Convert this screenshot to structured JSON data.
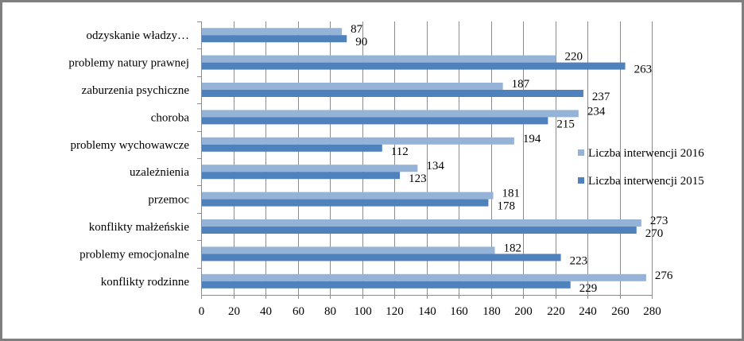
{
  "chart_data": {
    "type": "bar",
    "orientation": "horizontal",
    "categories": [
      "odzyskanie władzy…",
      "problemy natury prawnej",
      "zaburzenia psychiczne",
      "choroba",
      "problemy wychowawcze",
      "uzależnienia",
      "przemoc",
      "konflikty małżeńskie",
      "problemy emocjonalne",
      "konflikty rodzinne"
    ],
    "series": [
      {
        "name": "Liczba interwencji 2016",
        "color": "#95b3d7",
        "values": [
          87,
          220,
          187,
          234,
          194,
          134,
          181,
          273,
          182,
          276
        ],
        "labels": [
          "87",
          "220",
          "187",
          "234",
          "194",
          "134",
          "181",
          "273",
          "182",
          "276"
        ]
      },
      {
        "name": "Liczba interwencji 2015",
        "color": "#4f81bd",
        "values": [
          90,
          263,
          237,
          215,
          112,
          123,
          178,
          270,
          223,
          229
        ],
        "labels": [
          "90",
          "263",
          "237",
          "215",
          "112",
          "123",
          "178",
          "270",
          "223",
          "229"
        ]
      }
    ],
    "xlim": [
      0,
      280
    ],
    "x_ticks": [
      0,
      20,
      40,
      60,
      80,
      100,
      120,
      140,
      160,
      180,
      200,
      220,
      240,
      260,
      280
    ],
    "x_tick_labels": [
      "0",
      "20",
      "40",
      "60",
      "80",
      "100",
      "120",
      "140",
      "160",
      "180",
      "200",
      "220",
      "240",
      "260",
      "280"
    ],
    "title": "",
    "xlabel": "",
    "ylabel": "",
    "grid": true,
    "legend_position": "right",
    "legend_order": [
      "Liczba interwencji 2016",
      "Liczba interwencji 2015"
    ]
  }
}
